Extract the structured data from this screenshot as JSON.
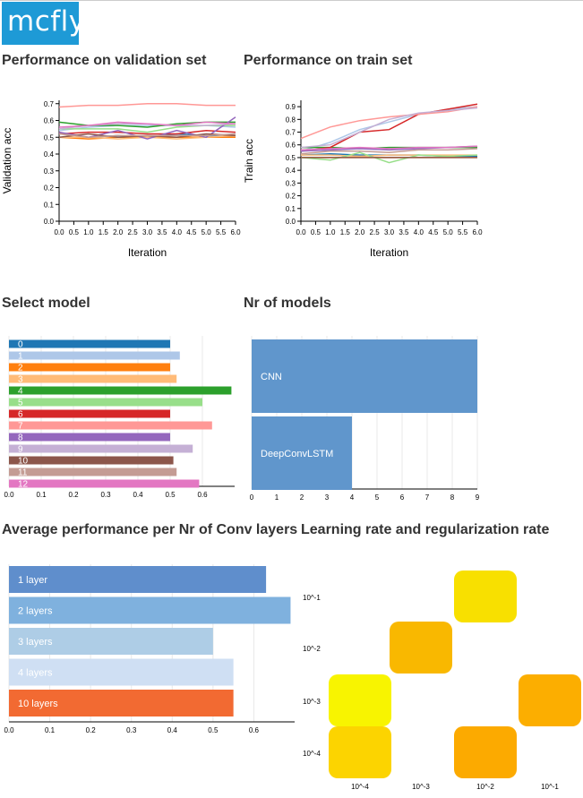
{
  "logo": {
    "text": "mcfly"
  },
  "colors": [
    "#1f77b4",
    "#aec7e8",
    "#ff7f0e",
    "#ffbb78",
    "#2ca02c",
    "#98df8a",
    "#d62728",
    "#ff9896",
    "#9467bd",
    "#c5b0d5",
    "#8c564b",
    "#c49c94",
    "#e377c2"
  ],
  "headings": {
    "validation": "Performance on validation set",
    "train": "Performance on train set",
    "select_model": "Select model",
    "nr_models": "Nr of models",
    "avg_perf": "Average performance per Nr of Conv layers",
    "lr": "Learning rate and regularization rate"
  },
  "chart_data": [
    {
      "id": "validation",
      "type": "line",
      "xlabel": "Iteration",
      "ylabel": "Validation acc",
      "x": [
        0,
        1,
        2,
        3,
        4,
        5,
        6
      ],
      "xticks": [
        "0.0",
        "0.5",
        "1.0",
        "1.5",
        "2.0",
        "2.5",
        "3.0",
        "3.5",
        "4.0",
        "4.5",
        "5.0",
        "5.5",
        "6.0"
      ],
      "yticks": [
        "0.0",
        "0.1",
        "0.2",
        "0.3",
        "0.4",
        "0.5",
        "0.6",
        "0.7"
      ],
      "xlim": [
        0,
        6
      ],
      "ylim": [
        0,
        0.72
      ],
      "series": [
        {
          "values": [
            0.5,
            0.5,
            0.51,
            0.5,
            0.52,
            0.51,
            0.5
          ]
        },
        {
          "values": [
            0.54,
            0.56,
            0.57,
            0.57,
            0.57,
            0.57,
            0.56
          ]
        },
        {
          "values": [
            0.5,
            0.49,
            0.5,
            0.5,
            0.5,
            0.5,
            0.5
          ]
        },
        {
          "values": [
            0.5,
            0.5,
            0.49,
            0.5,
            0.49,
            0.5,
            0.51
          ]
        },
        {
          "values": [
            0.59,
            0.57,
            0.57,
            0.56,
            0.58,
            0.59,
            0.59
          ]
        },
        {
          "values": [
            0.55,
            0.55,
            0.55,
            0.53,
            0.56,
            0.57,
            0.57
          ]
        },
        {
          "values": [
            0.52,
            0.53,
            0.53,
            0.52,
            0.52,
            0.54,
            0.53
          ]
        },
        {
          "values": [
            0.68,
            0.69,
            0.69,
            0.7,
            0.7,
            0.69,
            0.69
          ]
        },
        {
          "values": [
            0.53,
            0.5,
            0.54,
            0.49,
            0.54,
            0.5,
            0.62
          ]
        },
        {
          "values": [
            0.55,
            0.57,
            0.58,
            0.58,
            0.57,
            0.57,
            0.58
          ]
        },
        {
          "values": [
            0.5,
            0.52,
            0.5,
            0.51,
            0.5,
            0.52,
            0.51
          ]
        },
        {
          "values": [
            0.52,
            0.5,
            0.51,
            0.51,
            0.51,
            0.51,
            0.52
          ]
        },
        {
          "values": [
            0.56,
            0.57,
            0.59,
            0.58,
            0.57,
            0.59,
            0.58
          ]
        }
      ]
    },
    {
      "id": "train",
      "type": "line",
      "xlabel": "Iteration",
      "ylabel": "Train acc",
      "x": [
        0,
        1,
        2,
        3,
        4,
        5,
        6
      ],
      "xticks": [
        "0.0",
        "0.5",
        "1.0",
        "1.5",
        "2.0",
        "2.5",
        "3.0",
        "3.5",
        "4.0",
        "4.5",
        "5.0",
        "5.5",
        "6.0"
      ],
      "yticks": [
        "0.0",
        "0.1",
        "0.2",
        "0.3",
        "0.4",
        "0.5",
        "0.6",
        "0.7",
        "0.8",
        "0.9"
      ],
      "xlim": [
        0,
        6
      ],
      "ylim": [
        0,
        0.95
      ],
      "series": [
        {
          "values": [
            0.52,
            0.53,
            0.52,
            0.52,
            0.52,
            0.51,
            0.51
          ]
        },
        {
          "values": [
            0.55,
            0.62,
            0.72,
            0.78,
            0.84,
            0.88,
            0.9
          ]
        },
        {
          "values": [
            0.5,
            0.5,
            0.5,
            0.5,
            0.5,
            0.5,
            0.5
          ]
        },
        {
          "values": [
            0.52,
            0.52,
            0.51,
            0.52,
            0.52,
            0.52,
            0.52
          ]
        },
        {
          "values": [
            0.58,
            0.58,
            0.57,
            0.58,
            0.58,
            0.58,
            0.58
          ]
        },
        {
          "values": [
            0.5,
            0.48,
            0.54,
            0.46,
            0.52,
            0.51,
            0.52
          ]
        },
        {
          "values": [
            0.55,
            0.58,
            0.7,
            0.72,
            0.84,
            0.88,
            0.92
          ]
        },
        {
          "values": [
            0.65,
            0.74,
            0.79,
            0.82,
            0.84,
            0.86,
            0.9
          ]
        },
        {
          "values": [
            0.55,
            0.56,
            0.57,
            0.56,
            0.57,
            0.58,
            0.59
          ]
        },
        {
          "values": [
            0.58,
            0.6,
            0.7,
            0.8,
            0.85,
            0.87,
            0.89
          ]
        },
        {
          "values": [
            0.5,
            0.5,
            0.5,
            0.5,
            0.5,
            0.5,
            0.5
          ]
        },
        {
          "values": [
            0.53,
            0.55,
            0.55,
            0.54,
            0.56,
            0.56,
            0.57
          ]
        },
        {
          "values": [
            0.56,
            0.57,
            0.58,
            0.57,
            0.58,
            0.58,
            0.59
          ]
        }
      ]
    },
    {
      "id": "select_model",
      "type": "bar",
      "orientation": "horizontal",
      "categories": [
        "0",
        "1",
        "2",
        "3",
        "4",
        "5",
        "6",
        "7",
        "8",
        "9",
        "10",
        "11",
        "12"
      ],
      "values": [
        0.5,
        0.53,
        0.5,
        0.52,
        0.69,
        0.6,
        0.5,
        0.63,
        0.5,
        0.57,
        0.51,
        0.52,
        0.59
      ],
      "xticks": [
        "0.0",
        "0.1",
        "0.2",
        "0.3",
        "0.4",
        "0.5",
        "0.6"
      ],
      "xlim": [
        0,
        0.7
      ]
    },
    {
      "id": "nr_models",
      "type": "bar",
      "orientation": "horizontal",
      "categories": [
        "CNN",
        "DeepConvLSTM"
      ],
      "values": [
        9,
        4
      ],
      "colors": [
        "#6096cc",
        "#6096cc"
      ],
      "xticks": [
        "0",
        "1",
        "2",
        "3",
        "4",
        "5",
        "6",
        "7",
        "8",
        "9"
      ],
      "xlim": [
        0,
        9
      ]
    },
    {
      "id": "avg_perf",
      "type": "bar",
      "orientation": "horizontal",
      "categories": [
        "1 layer",
        "2 layers",
        "3 layers",
        "4 layers",
        "10 layers"
      ],
      "values": [
        0.63,
        0.69,
        0.5,
        0.55,
        0.55
      ],
      "colors": [
        "#5f8ecc",
        "#7fb1de",
        "#aecde6",
        "#cfdff3",
        "#f26a32"
      ],
      "xticks": [
        "0.0",
        "0.1",
        "0.2",
        "0.3",
        "0.4",
        "0.5",
        "0.6"
      ],
      "xlim": [
        0,
        0.7
      ]
    },
    {
      "id": "lr_reg",
      "type": "heatmap",
      "xlabels": [
        "10^-4",
        "10^-3",
        "10^-2",
        "10^-1"
      ],
      "ylabels": [
        "10^-1",
        "10^-2",
        "10^-3",
        "10^-4"
      ],
      "cells": [
        {
          "x": "10^-2",
          "y": "10^-1",
          "color": "#f8e000"
        },
        {
          "x": "10^-3",
          "y": "10^-2",
          "color": "#f9b800"
        },
        {
          "x": "10^-4",
          "y": "10^-3",
          "color": "#f8f400"
        },
        {
          "x": "10^-1",
          "y": "10^-3",
          "color": "#fcae00"
        },
        {
          "x": "10^-4",
          "y": "10^-4",
          "color": "#fcd400"
        },
        {
          "x": "10^-2",
          "y": "10^-4",
          "color": "#fcaa00"
        }
      ]
    }
  ]
}
